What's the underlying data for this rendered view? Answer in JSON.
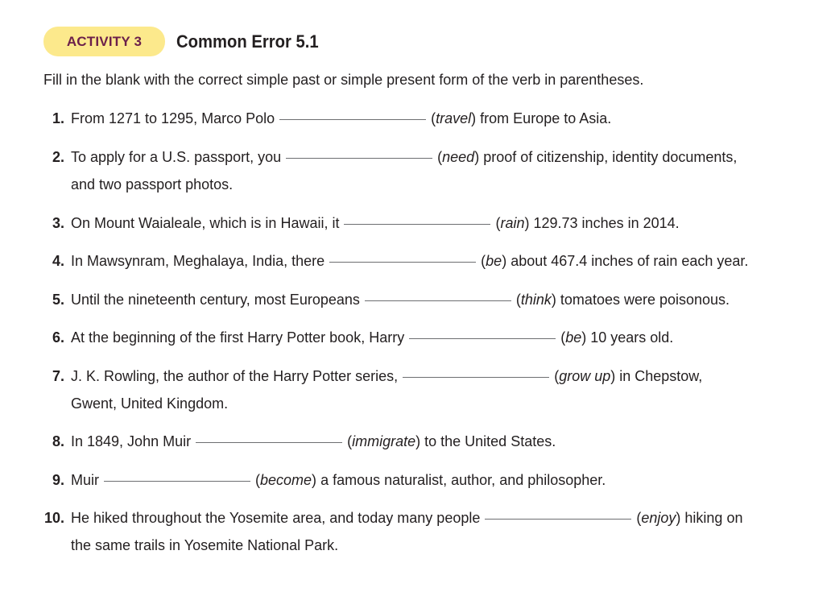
{
  "header": {
    "badge": "ACTIVITY 3",
    "title": "Common Error 5.1"
  },
  "instructions": "Fill in the blank with the correct simple past or simple present form of the verb in parentheses.",
  "items": [
    {
      "num": "1.",
      "before": "From 1271 to 1295, Marco Polo",
      "verb": "travel",
      "after": "from Europe to Asia.",
      "cont": ""
    },
    {
      "num": "2.",
      "before": "To apply for a U.S. passport, you",
      "verb": "need",
      "after": "proof of citizenship, identity documents,",
      "cont": "and two passport photos."
    },
    {
      "num": "3.",
      "before": "On Mount Waialeale, which is in Hawaii, it",
      "verb": "rain",
      "after": "129.73 inches in 2014.",
      "cont": ""
    },
    {
      "num": "4.",
      "before": "In Mawsynram, Meghalaya, India, there",
      "verb": "be",
      "after": "about 467.4 inches of rain each year.",
      "cont": ""
    },
    {
      "num": "5.",
      "before": "Until the nineteenth century, most Europeans",
      "verb": "think",
      "after": "tomatoes were poisonous.",
      "cont": ""
    },
    {
      "num": "6.",
      "before": "At the beginning of the first Harry Potter book, Harry",
      "verb": "be",
      "after": "10 years old.",
      "cont": ""
    },
    {
      "num": "7.",
      "before": "J. K. Rowling, the author of the Harry Potter series,",
      "verb": "grow up",
      "after": "in Chepstow,",
      "cont": "Gwent, United Kingdom."
    },
    {
      "num": "8.",
      "before": "In 1849, John Muir",
      "verb": "immigrate",
      "after": "to the United States.",
      "cont": ""
    },
    {
      "num": "9.",
      "before": "Muir",
      "verb": "become",
      "after": "a famous naturalist, author, and philosopher.",
      "cont": ""
    },
    {
      "num": "10.",
      "before": "He hiked throughout the Yosemite area, and today many people",
      "verb": "enjoy",
      "after": "hiking on",
      "cont": "the same trails in Yosemite National Park."
    }
  ]
}
